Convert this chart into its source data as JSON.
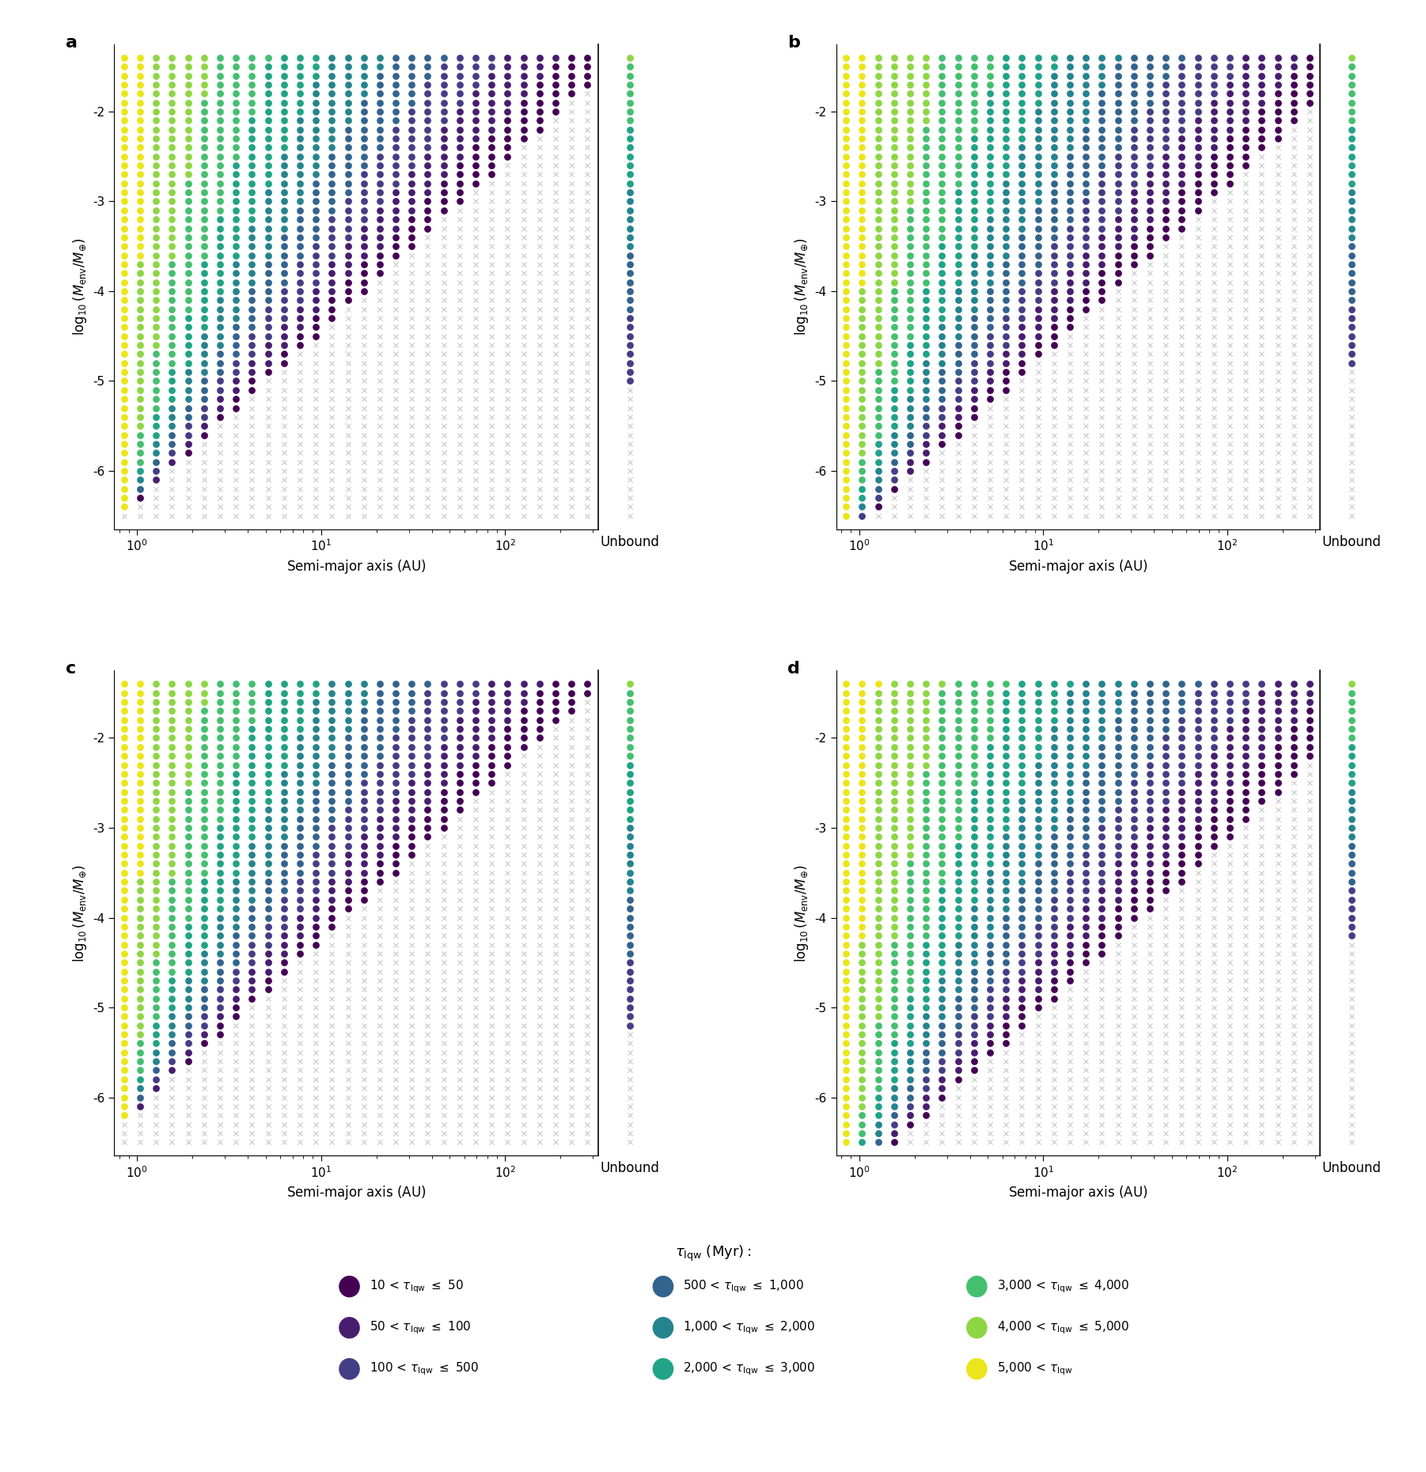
{
  "subplot_labels": [
    "a",
    "b",
    "c",
    "d"
  ],
  "xlabel": "Semi-major axis (AU)",
  "ylabel": "log$_{10}$($M_{\\rm env}/M_{\\oplus}$)",
  "unbound_label": "Unbound",
  "legend_title": "$\\tau_{\\rm lqw}$ (Myr):",
  "cross_color": "#c8c8c8",
  "marker_size": 40,
  "cross_size": 20,
  "ylim": [
    -6.65,
    -1.25
  ],
  "y_ticks": [
    -6,
    -5,
    -4,
    -3,
    -2
  ],
  "x_ticks": [
    1,
    10,
    100
  ],
  "panel_mods": [
    1.0,
    1.4,
    0.8,
    2.0
  ],
  "unbound_thresholds": [
    -5.0,
    -4.8,
    -5.2,
    -4.2
  ],
  "legend_labels": [
    "10 < $\\tau_{\\rm lqw}$ $\\leq$ 50",
    "50 < $\\tau_{\\rm lqw}$ $\\leq$ 100",
    "100 < $\\tau_{\\rm lqw}$ $\\leq$ 500",
    "500 < $\\tau_{\\rm lqw}$ $\\leq$ 1,000",
    "1,000 < $\\tau_{\\rm lqw}$ $\\leq$ 2,000",
    "2,000 < $\\tau_{\\rm lqw}$ $\\leq$ 3,000",
    "3,000 < $\\tau_{\\rm lqw}$ $\\leq$ 4,000",
    "4,000 < $\\tau_{\\rm lqw}$ $\\leq$ 5,000",
    "5,000 < $\\tau_{\\rm lqw}$"
  ]
}
